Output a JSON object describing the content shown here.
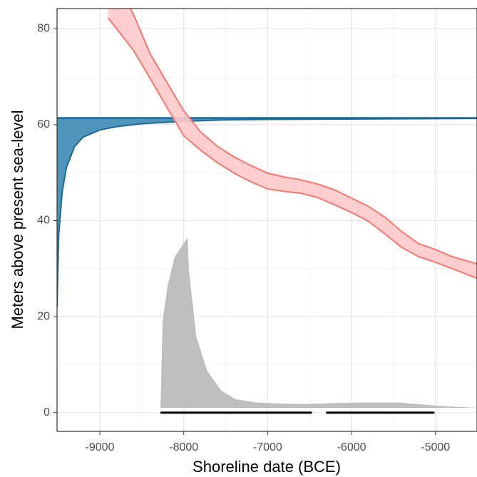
{
  "chart_data": {
    "type": "area",
    "xlabel": "Shoreline date (BCE)",
    "ylabel": "Meters above present sea-level",
    "xlim": [
      -9510,
      -4505
    ],
    "ylim": [
      -3.9,
      84.2
    ],
    "xticks": [
      -9000,
      -8000,
      -7000,
      -6000,
      -5000
    ],
    "yticks": [
      0,
      20,
      40,
      60,
      80
    ],
    "xminor": [
      -9500,
      -8500,
      -7500,
      -6500,
      -5500,
      -4500
    ],
    "yminor": [
      10,
      30,
      50,
      70
    ],
    "grid": true,
    "ribbon": {
      "color": "#f8766d",
      "fill": "#ffc9c9",
      "x": [
        -8900,
        -8800,
        -8600,
        -8400,
        -8200,
        -8000,
        -7800,
        -7600,
        -7400,
        -7200,
        -7000,
        -6800,
        -6600,
        -6400,
        -6200,
        -6000,
        -5800,
        -5600,
        -5400,
        -5200,
        -5000,
        -4800,
        -4505
      ],
      "ymin": [
        82.2,
        80,
        75.5,
        69.6,
        63.6,
        57.7,
        54.7,
        52.1,
        49.9,
        48.1,
        46.6,
        46.1,
        45.7,
        44.8,
        43.3,
        41.7,
        39.9,
        37.2,
        34.4,
        32.5,
        31.3,
        30.0,
        28
      ],
      "ymax": [
        93,
        90,
        83,
        74.8,
        68.8,
        62.9,
        58.5,
        55.5,
        53.3,
        51.5,
        49.9,
        49.1,
        48.5,
        47.6,
        46.4,
        44.7,
        43,
        40.7,
        37.7,
        35.2,
        34,
        32.5,
        31
      ]
    },
    "shoreline": {
      "color": "#1a6a98",
      "fill": "#4f95bb",
      "level": 61.4,
      "x": [
        -9510,
        -9490,
        -9450,
        -9400,
        -9300,
        -9200,
        -9000,
        -8800,
        -8500,
        -8000,
        -7500,
        -7000,
        -4505
      ],
      "values": [
        22,
        37,
        45.8,
        51,
        55.5,
        57.4,
        58.9,
        59.6,
        60.2,
        60.7,
        61.0,
        61.1,
        61.3
      ]
    },
    "density": {
      "color": "#bebebe",
      "base": 1,
      "x": [
        -8277,
        -8252,
        -8192,
        -8107,
        -7954,
        -7937,
        -7852,
        -7724,
        -7554,
        -7384,
        -7129,
        -6619,
        -5939,
        -5429,
        -5088,
        -4748,
        -4505
      ],
      "values": [
        1.3,
        19,
        26.5,
        32.5,
        36.5,
        29.5,
        16,
        8.8,
        4.6,
        2.8,
        2.1,
        1.8,
        2.1,
        2.1,
        1.6,
        1.2,
        1.0
      ]
    },
    "hpd": {
      "color": "#000000",
      "y": 0,
      "intervals": [
        [
          -8277,
          -6474
        ],
        [
          -6304,
          -5012
        ]
      ]
    }
  }
}
